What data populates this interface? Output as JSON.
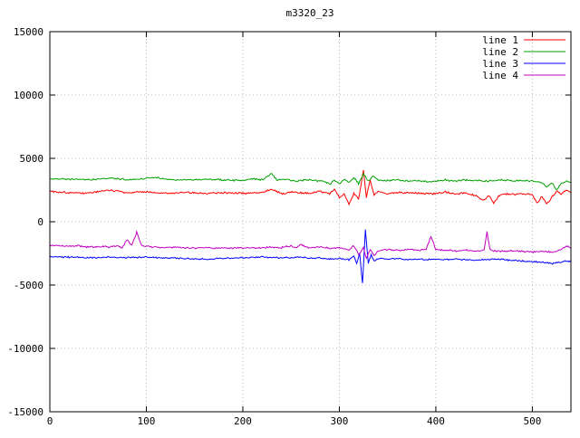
{
  "chart_data": {
    "type": "line",
    "title": "m3320_23",
    "xlabel": "",
    "ylabel": "",
    "xlim": [
      0,
      540
    ],
    "ylim": [
      -15000,
      15000
    ],
    "x_ticks": [
      0,
      100,
      200,
      300,
      400,
      500
    ],
    "y_ticks": [
      -15000,
      -10000,
      -5000,
      0,
      5000,
      10000,
      15000
    ],
    "grid": true,
    "grid_color": "#b8b8b8",
    "border_color": "#000000",
    "background": "#ffffff",
    "legend_position": "top-right",
    "series": [
      {
        "name": "line 1",
        "color": "#ff0000",
        "noise": 90,
        "seed": 101,
        "keypoints": [
          [
            0,
            2400
          ],
          [
            20,
            2300
          ],
          [
            40,
            2250
          ],
          [
            60,
            2500
          ],
          [
            80,
            2300
          ],
          [
            100,
            2350
          ],
          [
            120,
            2250
          ],
          [
            140,
            2300
          ],
          [
            160,
            2250
          ],
          [
            180,
            2300
          ],
          [
            200,
            2250
          ],
          [
            220,
            2300
          ],
          [
            230,
            2600
          ],
          [
            240,
            2200
          ],
          [
            250,
            2350
          ],
          [
            260,
            2300
          ],
          [
            270,
            2250
          ],
          [
            280,
            2400
          ],
          [
            290,
            2200
          ],
          [
            295,
            2600
          ],
          [
            300,
            1900
          ],
          [
            305,
            2200
          ],
          [
            310,
            1350
          ],
          [
            315,
            2200
          ],
          [
            320,
            1800
          ],
          [
            325,
            4100
          ],
          [
            328,
            1900
          ],
          [
            332,
            3300
          ],
          [
            336,
            2100
          ],
          [
            340,
            2400
          ],
          [
            350,
            2200
          ],
          [
            360,
            2300
          ],
          [
            380,
            2250
          ],
          [
            400,
            2200
          ],
          [
            410,
            2350
          ],
          [
            420,
            2200
          ],
          [
            430,
            2250
          ],
          [
            440,
            2100
          ],
          [
            450,
            1700
          ],
          [
            455,
            2100
          ],
          [
            460,
            1450
          ],
          [
            465,
            2000
          ],
          [
            470,
            2200
          ],
          [
            480,
            2150
          ],
          [
            490,
            2200
          ],
          [
            500,
            2100
          ],
          [
            505,
            1500
          ],
          [
            510,
            2000
          ],
          [
            515,
            1400
          ],
          [
            520,
            1900
          ],
          [
            525,
            2400
          ],
          [
            530,
            2200
          ],
          [
            535,
            2500
          ],
          [
            540,
            2300
          ]
        ]
      },
      {
        "name": "line 2",
        "color": "#00a000",
        "noise": 80,
        "seed": 202,
        "keypoints": [
          [
            0,
            3400
          ],
          [
            20,
            3350
          ],
          [
            40,
            3300
          ],
          [
            60,
            3450
          ],
          [
            80,
            3300
          ],
          [
            100,
            3400
          ],
          [
            110,
            3500
          ],
          [
            120,
            3350
          ],
          [
            140,
            3300
          ],
          [
            160,
            3350
          ],
          [
            180,
            3300
          ],
          [
            200,
            3250
          ],
          [
            210,
            3400
          ],
          [
            220,
            3300
          ],
          [
            230,
            3800
          ],
          [
            235,
            3300
          ],
          [
            245,
            3350
          ],
          [
            255,
            3200
          ],
          [
            265,
            3300
          ],
          [
            275,
            3250
          ],
          [
            285,
            3200
          ],
          [
            290,
            2950
          ],
          [
            295,
            3300
          ],
          [
            300,
            3000
          ],
          [
            305,
            3350
          ],
          [
            310,
            3100
          ],
          [
            315,
            3500
          ],
          [
            320,
            3000
          ],
          [
            325,
            3800
          ],
          [
            330,
            3200
          ],
          [
            335,
            3600
          ],
          [
            340,
            3300
          ],
          [
            350,
            3250
          ],
          [
            360,
            3300
          ],
          [
            370,
            3200
          ],
          [
            380,
            3250
          ],
          [
            390,
            3150
          ],
          [
            400,
            3200
          ],
          [
            410,
            3300
          ],
          [
            420,
            3200
          ],
          [
            430,
            3300
          ],
          [
            440,
            3250
          ],
          [
            450,
            3200
          ],
          [
            460,
            3250
          ],
          [
            470,
            3300
          ],
          [
            480,
            3200
          ],
          [
            490,
            3250
          ],
          [
            500,
            3200
          ],
          [
            510,
            3100
          ],
          [
            515,
            2700
          ],
          [
            520,
            3100
          ],
          [
            525,
            2550
          ],
          [
            530,
            3000
          ],
          [
            535,
            3200
          ],
          [
            540,
            3100
          ]
        ]
      },
      {
        "name": "line 3",
        "color": "#0000ff",
        "noise": 70,
        "seed": 303,
        "keypoints": [
          [
            0,
            -2750
          ],
          [
            20,
            -2800
          ],
          [
            40,
            -2850
          ],
          [
            60,
            -2800
          ],
          [
            80,
            -2850
          ],
          [
            100,
            -2800
          ],
          [
            120,
            -2850
          ],
          [
            140,
            -2900
          ],
          [
            160,
            -2950
          ],
          [
            180,
            -2900
          ],
          [
            200,
            -2850
          ],
          [
            220,
            -2800
          ],
          [
            240,
            -2850
          ],
          [
            260,
            -2800
          ],
          [
            270,
            -2900
          ],
          [
            280,
            -2850
          ],
          [
            290,
            -2950
          ],
          [
            300,
            -2900
          ],
          [
            310,
            -3000
          ],
          [
            315,
            -2700
          ],
          [
            318,
            -3300
          ],
          [
            321,
            -2500
          ],
          [
            324,
            -4850
          ],
          [
            327,
            -650
          ],
          [
            330,
            -3300
          ],
          [
            333,
            -2600
          ],
          [
            336,
            -3100
          ],
          [
            340,
            -2900
          ],
          [
            350,
            -2950
          ],
          [
            360,
            -2900
          ],
          [
            370,
            -3000
          ],
          [
            380,
            -2950
          ],
          [
            390,
            -3000
          ],
          [
            400,
            -2950
          ],
          [
            410,
            -3000
          ],
          [
            420,
            -2950
          ],
          [
            430,
            -3000
          ],
          [
            440,
            -3050
          ],
          [
            450,
            -3000
          ],
          [
            460,
            -2950
          ],
          [
            470,
            -3000
          ],
          [
            480,
            -3050
          ],
          [
            490,
            -3100
          ],
          [
            500,
            -3150
          ],
          [
            510,
            -3200
          ],
          [
            520,
            -3300
          ],
          [
            525,
            -3250
          ],
          [
            530,
            -3200
          ],
          [
            535,
            -3100
          ],
          [
            540,
            -3150
          ]
        ]
      },
      {
        "name": "line 4",
        "color": "#c000c0",
        "noise": 80,
        "seed": 404,
        "keypoints": [
          [
            0,
            -1850
          ],
          [
            10,
            -1900
          ],
          [
            20,
            -1950
          ],
          [
            30,
            -1900
          ],
          [
            40,
            -2000
          ],
          [
            50,
            -1950
          ],
          [
            60,
            -2000
          ],
          [
            70,
            -1900
          ],
          [
            75,
            -2100
          ],
          [
            80,
            -1400
          ],
          [
            85,
            -1900
          ],
          [
            90,
            -850
          ],
          [
            95,
            -1900
          ],
          [
            100,
            -1950
          ],
          [
            110,
            -2000
          ],
          [
            120,
            -2050
          ],
          [
            130,
            -2000
          ],
          [
            140,
            -2050
          ],
          [
            150,
            -2100
          ],
          [
            160,
            -2050
          ],
          [
            170,
            -2100
          ],
          [
            180,
            -2050
          ],
          [
            190,
            -2100
          ],
          [
            200,
            -2050
          ],
          [
            210,
            -2100
          ],
          [
            220,
            -2050
          ],
          [
            230,
            -2000
          ],
          [
            240,
            -2050
          ],
          [
            250,
            -1900
          ],
          [
            255,
            -2050
          ],
          [
            260,
            -1800
          ],
          [
            265,
            -2000
          ],
          [
            270,
            -2050
          ],
          [
            280,
            -2000
          ],
          [
            290,
            -2100
          ],
          [
            300,
            -2050
          ],
          [
            310,
            -2200
          ],
          [
            315,
            -1900
          ],
          [
            320,
            -2600
          ],
          [
            325,
            -2000
          ],
          [
            328,
            -2900
          ],
          [
            332,
            -2200
          ],
          [
            336,
            -2700
          ],
          [
            340,
            -2300
          ],
          [
            350,
            -2200
          ],
          [
            360,
            -2250
          ],
          [
            370,
            -2200
          ],
          [
            380,
            -2250
          ],
          [
            390,
            -2200
          ],
          [
            395,
            -1150
          ],
          [
            400,
            -2200
          ],
          [
            410,
            -2250
          ],
          [
            420,
            -2300
          ],
          [
            430,
            -2250
          ],
          [
            440,
            -2300
          ],
          [
            450,
            -2250
          ],
          [
            453,
            -830
          ],
          [
            456,
            -2200
          ],
          [
            460,
            -2300
          ],
          [
            470,
            -2350
          ],
          [
            480,
            -2300
          ],
          [
            490,
            -2350
          ],
          [
            500,
            -2400
          ],
          [
            510,
            -2350
          ],
          [
            520,
            -2400
          ],
          [
            530,
            -2200
          ],
          [
            535,
            -1900
          ],
          [
            540,
            -2100
          ]
        ]
      }
    ]
  }
}
